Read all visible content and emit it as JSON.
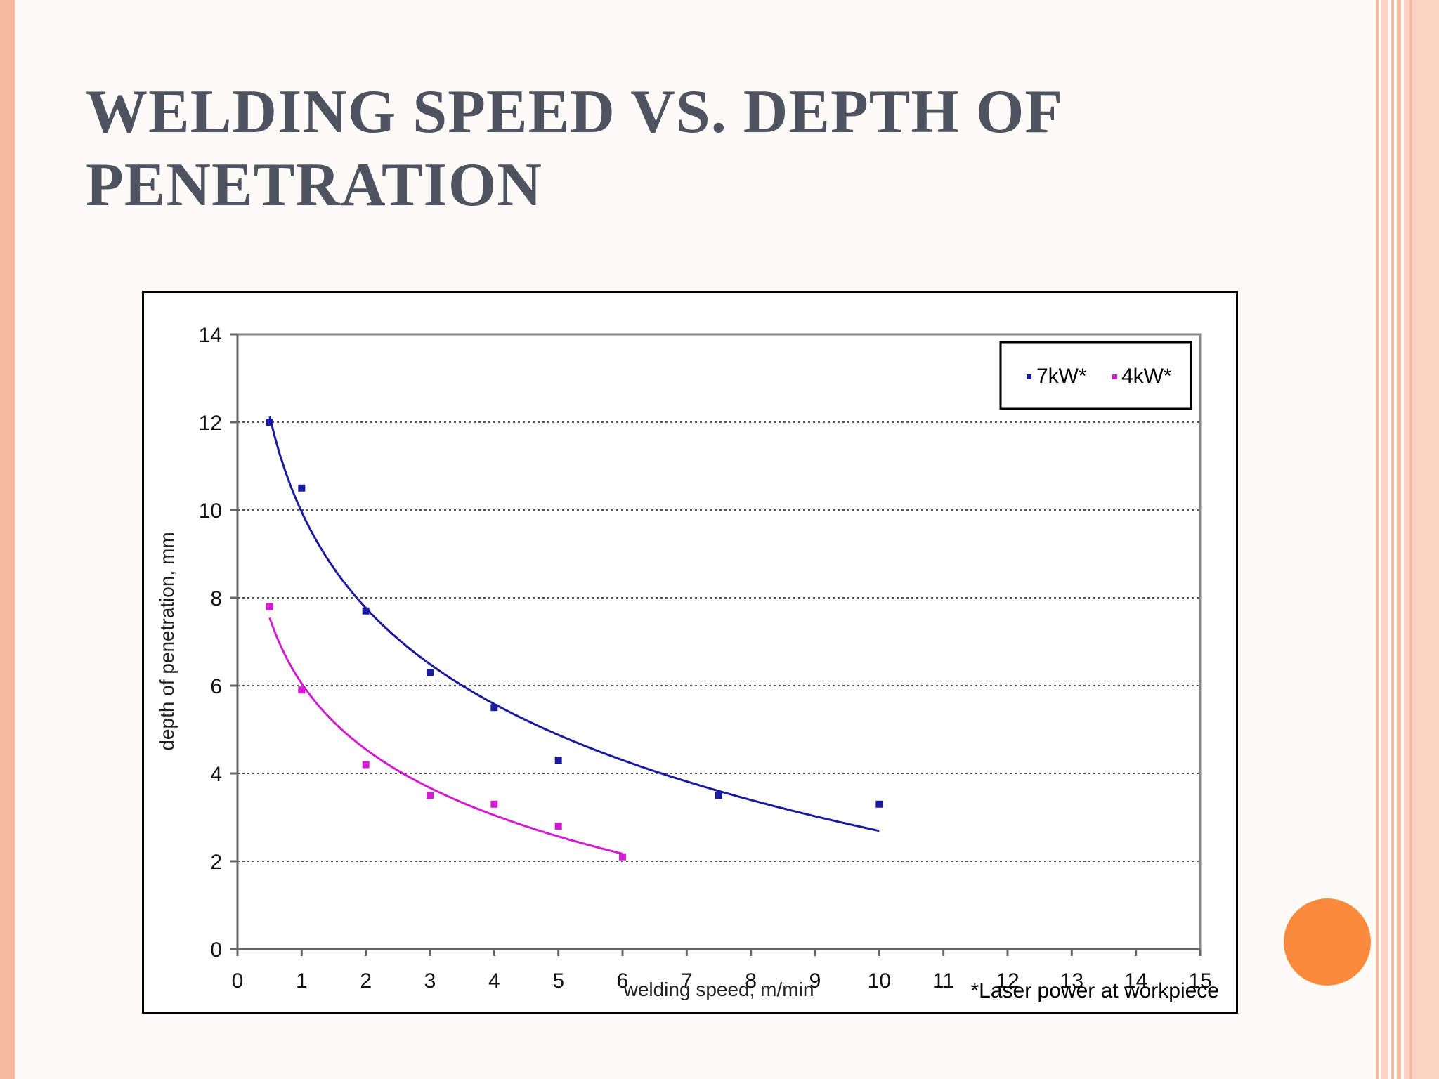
{
  "slide": {
    "title_line1": "WELDING SPEED VS. DEPTH OF",
    "title_line2": "PENETRATION"
  },
  "colors": {
    "border": "#f6b9a1",
    "title": "#4f5360",
    "accent_dot": "#fb8a3c",
    "series_7kw": "#1a1aa0",
    "series_4kw": "#d21bd2"
  },
  "chart_data": {
    "type": "scatter",
    "xlabel": "welding speed, m/min",
    "ylabel": "depth of penetration, mm",
    "xlim": [
      0,
      15
    ],
    "ylim": [
      0,
      14
    ],
    "x_ticks": [
      "0",
      "1",
      "2",
      "3",
      "4",
      "5",
      "6",
      "7",
      "8",
      "9",
      "10",
      "11",
      "12",
      "13",
      "14",
      "15"
    ],
    "y_ticks": [
      "0",
      "2",
      "4",
      "6",
      "8",
      "10",
      "12",
      "14"
    ],
    "grid": "horizontal-dotted",
    "legend_position": "top-right",
    "footnote": "*Laser power at workpiece",
    "series": [
      {
        "name": "7kW*",
        "color": "#1a1aa0",
        "x": [
          0.5,
          1,
          2,
          3,
          4,
          5,
          7.5,
          10
        ],
        "y": [
          12.0,
          10.5,
          7.7,
          6.3,
          5.5,
          4.3,
          3.5,
          3.3
        ],
        "trendline": "logarithmic"
      },
      {
        "name": "4kW*",
        "color": "#d21bd2",
        "x": [
          0.5,
          1,
          2,
          3,
          4,
          5,
          6
        ],
        "y": [
          7.8,
          5.9,
          4.2,
          3.5,
          3.3,
          2.8,
          2.1
        ],
        "trendline": "logarithmic"
      }
    ]
  }
}
